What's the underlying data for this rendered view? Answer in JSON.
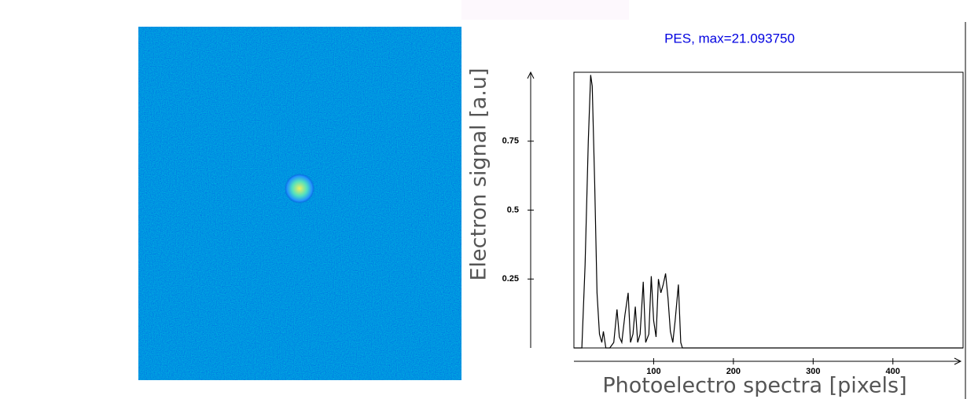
{
  "chart_data": {
    "type": "line",
    "title": "PES, max=21.093750",
    "x_label": "Photoelectro spectra [pixels]",
    "y_label": "Electron signal [a.u]",
    "x": [
      0,
      10,
      14,
      18,
      21,
      23,
      26,
      29,
      32,
      35,
      37,
      40,
      45,
      50,
      54,
      57,
      60,
      64,
      68,
      71,
      74,
      77,
      80,
      83,
      87,
      90,
      94,
      97,
      100,
      103,
      106,
      109,
      112,
      115,
      118,
      121,
      124,
      127,
      131,
      134,
      136,
      488
    ],
    "values": [
      0,
      0,
      0.3,
      0.75,
      0.99,
      0.95,
      0.6,
      0.2,
      0.05,
      0.02,
      0.06,
      0,
      0,
      0.02,
      0.14,
      0.04,
      0.02,
      0.12,
      0.2,
      0.02,
      0.05,
      0.15,
      0.02,
      0.05,
      0.24,
      0.02,
      0.05,
      0.26,
      0.1,
      0.04,
      0.25,
      0.2,
      0.23,
      0.27,
      0.18,
      0.06,
      0.02,
      0.1,
      0.23,
      0.02,
      0,
      0
    ],
    "color": "#000000",
    "xlim": [
      0,
      488
    ],
    "ylim": [
      0,
      1
    ],
    "xticks": [
      100,
      200,
      300,
      400
    ],
    "yticks": [
      0.25,
      0.5,
      0.75
    ]
  }
}
